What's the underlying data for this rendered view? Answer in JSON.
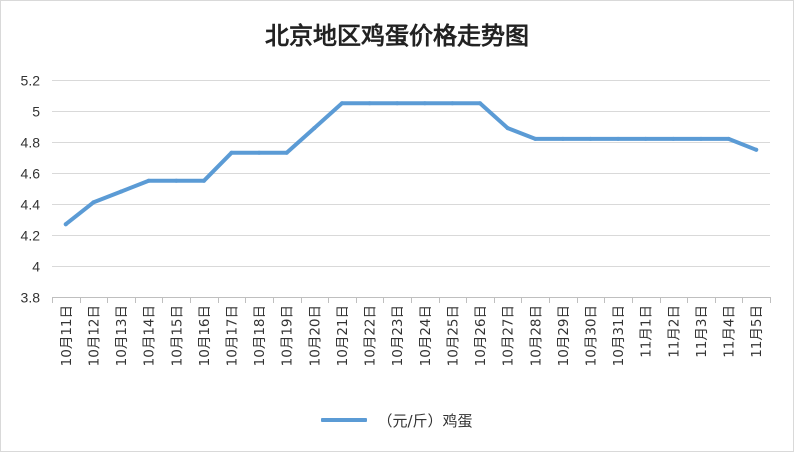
{
  "chart_data": {
    "type": "line",
    "title": "北京地区鸡蛋价格走势图",
    "categories": [
      "10月11日",
      "10月12日",
      "10月13日",
      "10月14日",
      "10月15日",
      "10月16日",
      "10月17日",
      "10月18日",
      "10月19日",
      "10月20日",
      "10月21日",
      "10月22日",
      "10月23日",
      "10月24日",
      "10月25日",
      "10月26日",
      "10月27日",
      "10月28日",
      "10月29日",
      "10月30日",
      "10月31日",
      "11月1日",
      "11月2日",
      "11月3日",
      "11月4日",
      "11月5日"
    ],
    "series": [
      {
        "name": "（元/斤）鸡蛋",
        "color": "#5B9BD5",
        "values": [
          4.27,
          4.41,
          4.48,
          4.55,
          4.55,
          4.55,
          4.73,
          4.73,
          4.73,
          4.89,
          5.05,
          5.05,
          5.05,
          5.05,
          5.05,
          5.05,
          4.89,
          4.82,
          4.82,
          4.82,
          4.82,
          4.82,
          4.82,
          4.82,
          4.82,
          4.75
        ]
      }
    ],
    "yticks": [
      "3.8",
      "4",
      "4.2",
      "4.4",
      "4.6",
      "4.8",
      "5",
      "5.2"
    ],
    "ylim": [
      3.8,
      5.2
    ],
    "grid": true,
    "legend": "bottom"
  }
}
